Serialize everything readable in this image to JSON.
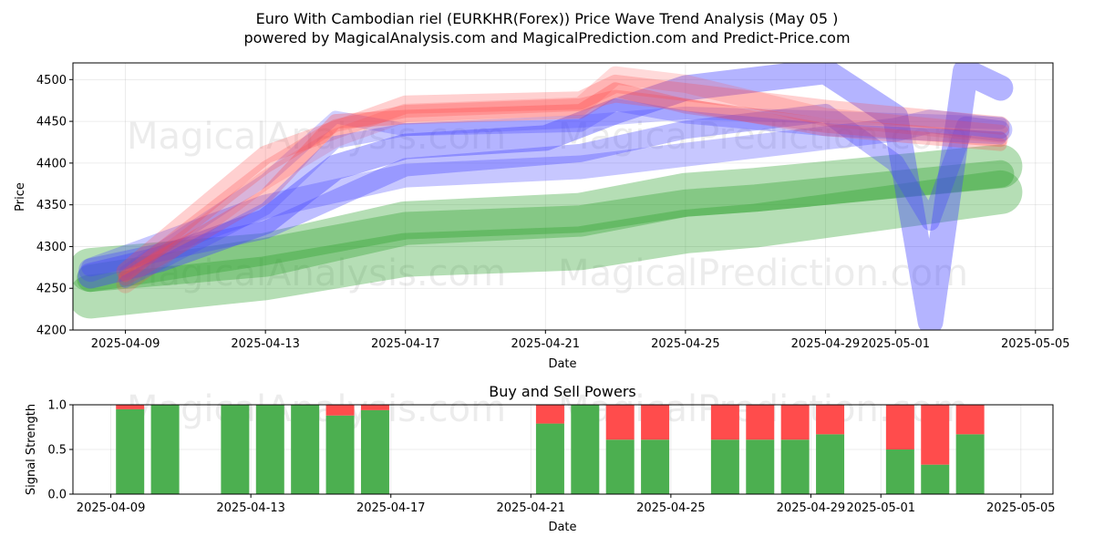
{
  "title_line1": "Euro With Cambodian riel (EURKHR(Forex)) Price Wave Trend Analysis (May 05 )",
  "title_line2": "powered by MagicalAnalysis.com and MagicalPrediction.com and Predict-Price.com",
  "watermarks": [
    "MagicalAnalysis.com",
    "MagicalPrediction.com"
  ],
  "colors": {
    "green": "#2ca02c",
    "blue": "#4444ff",
    "red": "#ff4444",
    "buy": "#4caf50",
    "sell": "#ff4c4c"
  },
  "chart_data": [
    {
      "type": "line",
      "title": "",
      "xlabel": "Date",
      "ylabel": "Price",
      "xlim": [
        "2025-04-07T12",
        "2025-05-05T12"
      ],
      "ylim": [
        4200,
        4520
      ],
      "x_ticks": [
        "2025-04-09",
        "2025-04-13",
        "2025-04-17",
        "2025-04-21",
        "2025-04-25",
        "2025-04-29",
        "2025-05-01",
        "2025-05-05"
      ],
      "y_ticks": [
        4200,
        4250,
        4300,
        4350,
        4400,
        4450,
        4500
      ],
      "grid": true,
      "bands": [
        {
          "color": "green",
          "alpha": 0.35,
          "width": 48,
          "x": [
            "2025-04-08",
            "2025-04-13",
            "2025-04-17",
            "2025-04-22",
            "2025-04-25",
            "2025-04-27",
            "2025-05-04"
          ],
          "y": [
            4272,
            4290,
            4328,
            4338,
            4362,
            4368,
            4396
          ]
        },
        {
          "color": "green",
          "alpha": 0.35,
          "width": 48,
          "x": [
            "2025-04-08",
            "2025-04-13",
            "2025-04-17",
            "2025-04-22",
            "2025-04-25",
            "2025-04-27",
            "2025-05-04"
          ],
          "y": [
            4240,
            4262,
            4290,
            4298,
            4318,
            4325,
            4365
          ]
        },
        {
          "color": "green",
          "alpha": 0.35,
          "width": 30,
          "x": [
            "2025-04-08",
            "2025-04-13",
            "2025-04-17",
            "2025-04-22",
            "2025-04-25",
            "2025-04-27",
            "2025-05-04"
          ],
          "y": [
            4262,
            4294,
            4325,
            4333,
            4352,
            4358,
            4387
          ]
        },
        {
          "color": "blue",
          "alpha": 0.3,
          "width": 26,
          "x": [
            "2025-04-08",
            "2025-04-13",
            "2025-04-17",
            "2025-04-22",
            "2025-04-25",
            "2025-04-29",
            "2025-05-01",
            "2025-05-02",
            "2025-05-03",
            "2025-05-04"
          ],
          "y": [
            4272,
            4348,
            4385,
            4395,
            4410,
            4430,
            4440,
            4450,
            4445,
            4440
          ]
        },
        {
          "color": "blue",
          "alpha": 0.35,
          "width": 20,
          "x": [
            "2025-04-08",
            "2025-04-13",
            "2025-04-17",
            "2025-04-22",
            "2025-04-25",
            "2025-04-29",
            "2025-05-01",
            "2025-05-02",
            "2025-05-03",
            "2025-05-04"
          ],
          "y": [
            4275,
            4320,
            4395,
            4412,
            4440,
            4460,
            4400,
            4330,
            4445,
            4440
          ]
        },
        {
          "color": "blue",
          "alpha": 0.4,
          "width": 28,
          "x": [
            "2025-04-08",
            "2025-04-10",
            "2025-04-13",
            "2025-04-15",
            "2025-04-17",
            "2025-04-21",
            "2025-04-23",
            "2025-04-25",
            "2025-04-29",
            "2025-05-01",
            "2025-05-02",
            "2025-05-03",
            "2025-05-04"
          ],
          "y": [
            4265,
            4285,
            4330,
            4395,
            4420,
            4430,
            4462,
            4490,
            4510,
            4455,
            4210,
            4510,
            4490
          ]
        },
        {
          "color": "blue",
          "alpha": 0.25,
          "width": 14,
          "x": [
            "2025-04-09",
            "2025-04-13",
            "2025-04-15",
            "2025-04-17",
            "2025-04-22",
            "2025-04-25",
            "2025-04-29",
            "2025-05-04"
          ],
          "y": [
            4270,
            4380,
            4455,
            4440,
            4450,
            4460,
            4455,
            4448
          ]
        },
        {
          "color": "red",
          "alpha": 0.25,
          "width": 20,
          "x": [
            "2025-04-09",
            "2025-04-13",
            "2025-04-15",
            "2025-04-17",
            "2025-04-22",
            "2025-04-23",
            "2025-04-25",
            "2025-04-29",
            "2025-05-04"
          ],
          "y": [
            4270,
            4410,
            4440,
            4470,
            4475,
            4495,
            4485,
            4465,
            4445
          ]
        },
        {
          "color": "red",
          "alpha": 0.2,
          "width": 20,
          "x": [
            "2025-04-09",
            "2025-04-13",
            "2025-04-15",
            "2025-04-17",
            "2025-04-22",
            "2025-04-23",
            "2025-04-25",
            "2025-04-29",
            "2025-05-04"
          ],
          "y": [
            4255,
            4380,
            4430,
            4460,
            4468,
            4505,
            4495,
            4455,
            4435
          ]
        },
        {
          "color": "red",
          "alpha": 0.3,
          "width": 16,
          "x": [
            "2025-04-09",
            "2025-04-13",
            "2025-04-15",
            "2025-04-17",
            "2025-04-22",
            "2025-04-23",
            "2025-04-25",
            "2025-04-29",
            "2025-05-04"
          ],
          "y": [
            4262,
            4360,
            4450,
            4455,
            4462,
            4488,
            4468,
            4445,
            4428
          ]
        },
        {
          "color": "blue",
          "alpha": 0.3,
          "width": 14,
          "x": [
            "2025-04-09",
            "2025-04-13",
            "2025-04-15",
            "2025-04-17",
            "2025-04-22",
            "2025-04-23",
            "2025-04-25",
            "2025-04-29",
            "2025-05-04"
          ],
          "y": [
            4258,
            4345,
            4425,
            4440,
            4445,
            4470,
            4455,
            4440,
            4430
          ]
        },
        {
          "color": "red",
          "alpha": 0.25,
          "width": 14,
          "x": [
            "2025-04-09",
            "2025-04-13",
            "2025-04-15",
            "2025-04-17",
            "2025-04-22",
            "2025-04-23",
            "2025-04-25",
            "2025-04-29",
            "2025-05-04"
          ],
          "y": [
            4265,
            4395,
            4445,
            4462,
            4470,
            4480,
            4470,
            4440,
            4422
          ]
        }
      ]
    },
    {
      "type": "bar",
      "title": "Buy and Sell Powers",
      "xlabel": "Date",
      "ylabel": "Signal Strength",
      "ylim": [
        0,
        1
      ],
      "y_ticks": [
        "0.0",
        "0.5",
        "1.0"
      ],
      "x_ticks": [
        "2025-04-09",
        "2025-04-13",
        "2025-04-17",
        "2025-04-21",
        "2025-04-25",
        "2025-04-29",
        "2025-05-01",
        "2025-05-05"
      ],
      "grid": true,
      "dates": [
        "2025-04-09",
        "2025-04-10",
        "2025-04-12",
        "2025-04-13",
        "2025-04-14",
        "2025-04-15",
        "2025-04-16",
        "2025-04-21",
        "2025-04-22",
        "2025-04-23",
        "2025-04-24",
        "2025-04-26",
        "2025-04-27",
        "2025-04-28",
        "2025-04-29",
        "2025-05-01",
        "2025-05-02",
        "2025-05-03"
      ],
      "buy": [
        0.95,
        1.0,
        1.0,
        1.0,
        1.0,
        0.88,
        0.94,
        0.79,
        1.0,
        0.61,
        0.61,
        0.61,
        0.61,
        0.61,
        0.67,
        0.5,
        0.33,
        0.67
      ],
      "sell": [
        0.05,
        0.0,
        0.0,
        0.0,
        0.0,
        0.12,
        0.06,
        0.21,
        0.0,
        0.39,
        0.39,
        0.39,
        0.39,
        0.39,
        0.33,
        0.5,
        0.67,
        0.33
      ]
    }
  ]
}
